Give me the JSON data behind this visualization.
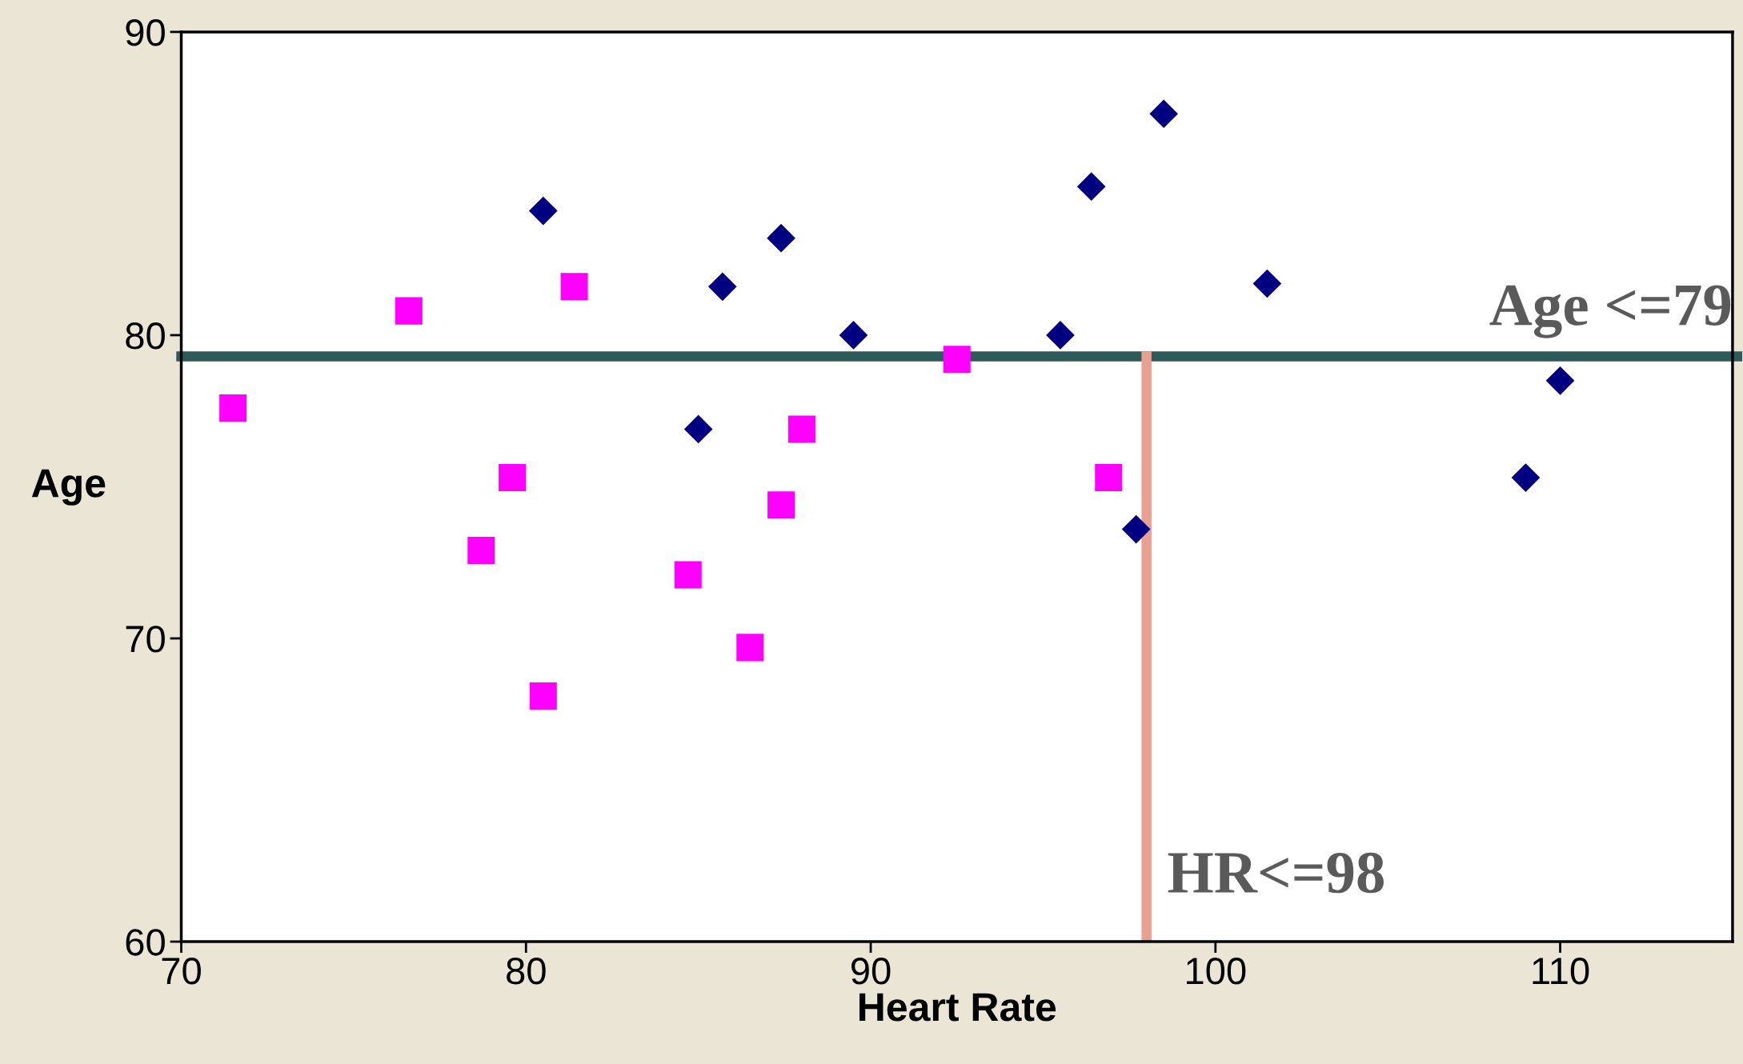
{
  "chart_data": {
    "type": "scatter",
    "xlabel": "Heart Rate",
    "ylabel": "Age",
    "xlim": [
      70,
      115
    ],
    "ylim": [
      60,
      90
    ],
    "xticks": [
      70,
      80,
      90,
      100,
      110
    ],
    "yticks": [
      60,
      70,
      80,
      90
    ],
    "grid": false,
    "series": [
      {
        "color": "#ff00ff",
        "marker": "square",
        "x": [
          71.5,
          76.6,
          81.4,
          79.6,
          78.7,
          80.5,
          84.7,
          86.5,
          87.4,
          88.0,
          92.5,
          96.9
        ],
        "values": [
          77.6,
          80.8,
          81.6,
          75.3,
          72.9,
          68.1,
          72.1,
          69.7,
          74.4,
          76.9,
          79.2,
          75.3
        ]
      },
      {
        "color": "#000080",
        "marker": "diamond",
        "x": [
          80.5,
          85.7,
          87.4,
          85.0,
          89.5,
          95.5,
          96.4,
          98.5,
          101.5,
          97.7,
          110.0,
          109.0
        ],
        "values": [
          84.1,
          81.6,
          83.2,
          76.9,
          80.0,
          80.0,
          84.9,
          87.3,
          81.7,
          73.6,
          78.5,
          75.3
        ]
      }
    ],
    "ref_lines": [
      {
        "axis": "y",
        "value": 79.3,
        "label": "Age <=79",
        "color": "#2f5a5a"
      },
      {
        "axis": "x",
        "value": 98,
        "label": "HR<=98",
        "color": "#e8a090"
      }
    ]
  }
}
